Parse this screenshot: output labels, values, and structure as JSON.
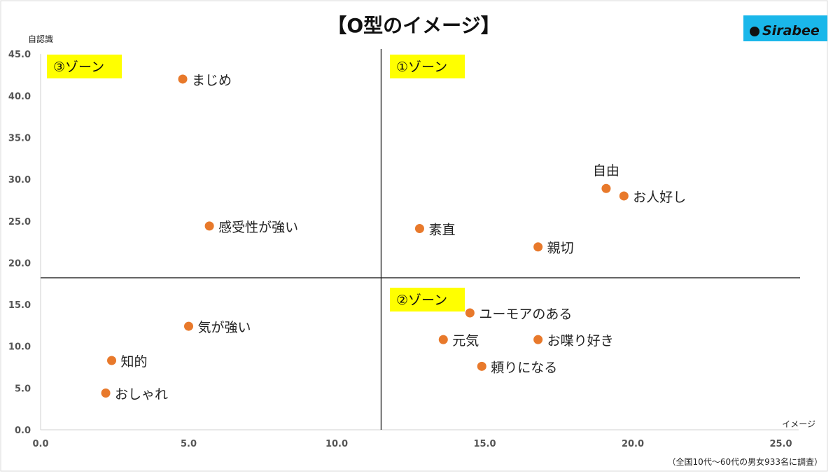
{
  "chart_data": {
    "type": "scatter",
    "title": "【O型のイメージ】",
    "xlabel": "イメージ",
    "ylabel": "自認識",
    "xlim": [
      0,
      25.6
    ],
    "ylim": [
      0,
      45
    ],
    "x_ticks": [
      "0.0",
      "5.0",
      "10.0",
      "15.0",
      "20.0",
      "25.0"
    ],
    "y_ticks": [
      "0.0",
      "5.0",
      "10.0",
      "15.0",
      "20.0",
      "25.0",
      "30.0",
      "35.0",
      "40.0",
      "45.0"
    ],
    "grid": false,
    "divider_x": 11.5,
    "divider_y": 18.2,
    "zones": [
      {
        "label": "③ゾーン",
        "position": "top-left"
      },
      {
        "label": "①ゾーン",
        "position": "top-right"
      },
      {
        "label": "②ゾーン",
        "position": "bottom-right"
      }
    ],
    "points": [
      {
        "label": "まじめ",
        "x": 4.8,
        "y": 42.0
      },
      {
        "label": "感受性が強い",
        "x": 5.7,
        "y": 24.4
      },
      {
        "label": "気が強い",
        "x": 5.0,
        "y": 12.4
      },
      {
        "label": "知的",
        "x": 2.4,
        "y": 8.3
      },
      {
        "label": "おしゃれ",
        "x": 2.2,
        "y": 4.4
      },
      {
        "label": "素直",
        "x": 12.8,
        "y": 24.1
      },
      {
        "label": "自由",
        "x": 19.1,
        "y": 28.9
      },
      {
        "label": "お人好し",
        "x": 19.7,
        "y": 28.0
      },
      {
        "label": "親切",
        "x": 16.8,
        "y": 21.9
      },
      {
        "label": "ユーモアのある",
        "x": 14.5,
        "y": 14.0
      },
      {
        "label": "元気",
        "x": 13.6,
        "y": 10.8
      },
      {
        "label": "お喋り好き",
        "x": 16.8,
        "y": 10.8
      },
      {
        "label": "頼りになる",
        "x": 14.9,
        "y": 7.6
      }
    ],
    "footnote": "（全国10代〜60代の男女933名に調査）",
    "colors": {
      "point": "#e8792b",
      "zone_bg": "#ffff00",
      "logo_bg": "#1ab7ea"
    }
  },
  "logo": {
    "text": "Sirabee"
  }
}
